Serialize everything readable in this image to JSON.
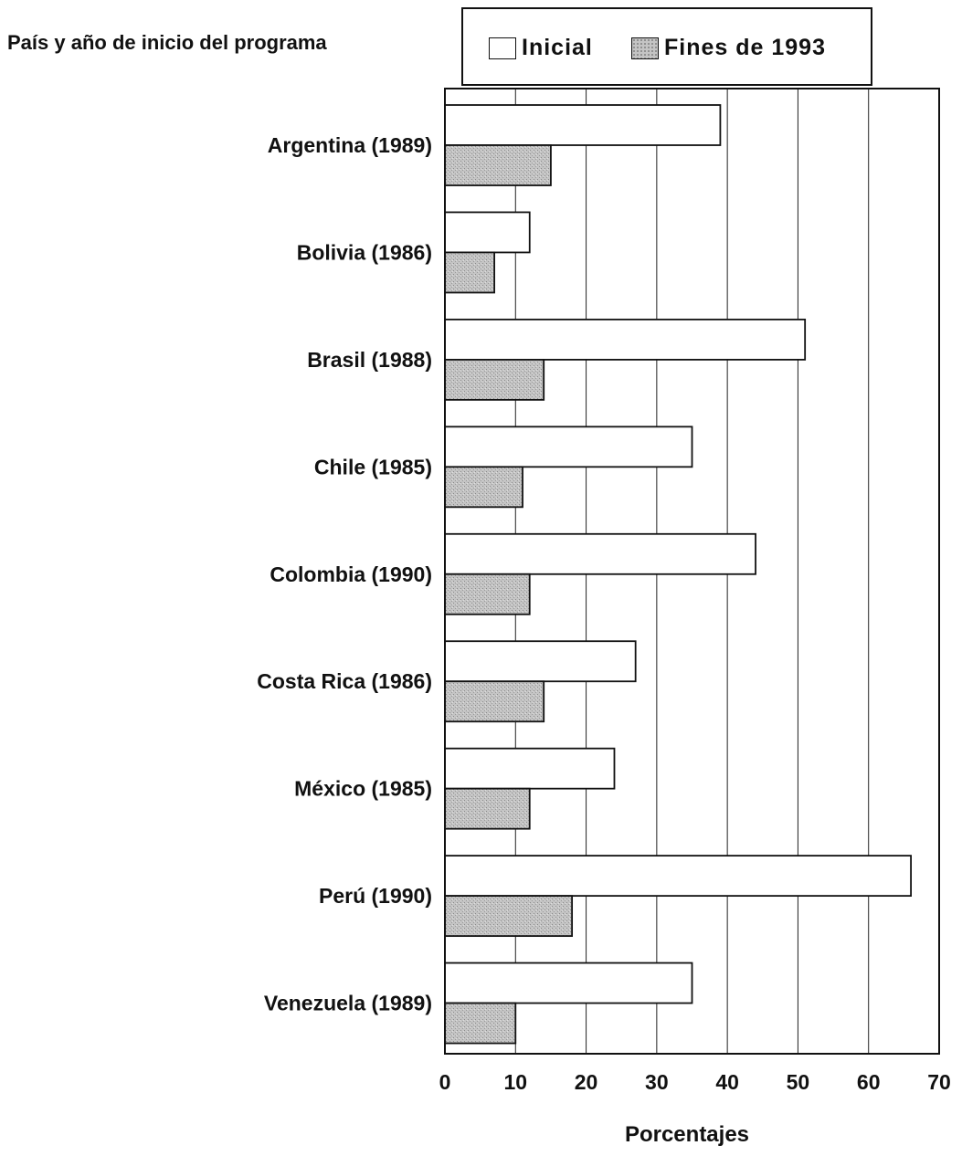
{
  "chart_data": {
    "type": "bar",
    "orientation": "horizontal",
    "category_header": "País y año de inicio del programa",
    "categories": [
      "Argentina  (1989)",
      "Bolivia  (1986)",
      "Brasil  (1988)",
      "Chile  (1985)",
      "Colombia  (1990)",
      "Costa Rica  (1986)",
      "México  (1985)",
      "Perú  (1990)",
      "Venezuela  (1989)"
    ],
    "series": [
      {
        "name": "Inicial",
        "values": [
          39,
          12,
          51,
          35,
          44,
          27,
          24,
          66,
          35
        ],
        "color": "#ffffff"
      },
      {
        "name": "Fines de 1993",
        "values": [
          15,
          7,
          14,
          11,
          12,
          14,
          12,
          18,
          10
        ],
        "color": "#c4c4c4"
      }
    ],
    "xlabel": "Porcentajes",
    "xlim": [
      0,
      70
    ],
    "xticks": [
      "0",
      "10",
      "20",
      "30",
      "40",
      "50",
      "60",
      "70"
    ],
    "grid": "vertical",
    "legend_position": "top-right"
  }
}
